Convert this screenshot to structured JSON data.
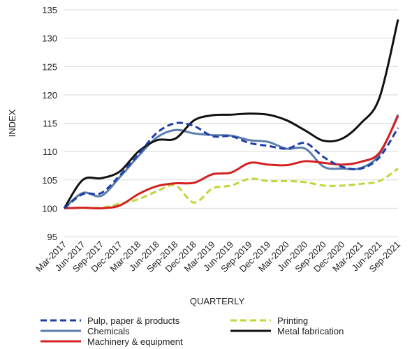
{
  "chart_data": {
    "type": "line",
    "xlabel": "QUARTERLY",
    "ylabel": "INDEX",
    "ylim": [
      95,
      135
    ],
    "yticks": [
      95,
      100,
      105,
      110,
      115,
      120,
      125,
      130,
      135
    ],
    "grid": "horizontal",
    "legend_position": "bottom",
    "categories": [
      "Mar-2017",
      "Jun-2017",
      "Sep-2017",
      "Dec-2017",
      "Mar-2018",
      "Jun-2018",
      "Sep-2018",
      "Dec-2018",
      "Mar-2019",
      "Jun-2019",
      "Sep-2019",
      "Dec-2019",
      "Mar-2020",
      "Jun-2020",
      "Sep-2020",
      "Dec-2020",
      "Mar-2021",
      "Jun-2021",
      "Sep-2021"
    ],
    "series": [
      {
        "name": "Pulp, paper & products",
        "color": "#1f3fa8",
        "dash": "dashed",
        "values": [
          100.0,
          102.5,
          102.7,
          105.8,
          109.5,
          113.3,
          115.0,
          114.5,
          112.7,
          112.7,
          111.5,
          111.0,
          110.5,
          111.5,
          109.0,
          107.3,
          107.0,
          109.0,
          114.2
        ]
      },
      {
        "name": "Printing",
        "color": "#bfd73a",
        "dash": "dashed",
        "values": [
          100.0,
          100.1,
          100.1,
          100.8,
          101.6,
          103.0,
          104.0,
          101.0,
          103.5,
          104.0,
          105.2,
          104.8,
          104.8,
          104.6,
          104.0,
          104.0,
          104.3,
          104.8,
          107.0
        ]
      },
      {
        "name": "Chemicals",
        "color": "#5b7fa8",
        "dash": "solid",
        "values": [
          100.0,
          102.7,
          102.2,
          105.5,
          109.2,
          112.5,
          113.8,
          113.2,
          112.9,
          112.8,
          112.0,
          111.7,
          110.5,
          110.5,
          107.3,
          107.0,
          107.1,
          109.5,
          116.5
        ]
      },
      {
        "name": "Metal fabrication",
        "color": "#111111",
        "dash": "solid",
        "values": [
          100.0,
          105.0,
          105.3,
          106.5,
          110.0,
          112.0,
          112.3,
          115.5,
          116.4,
          116.5,
          116.7,
          116.5,
          115.5,
          113.7,
          111.9,
          112.3,
          115.0,
          119.5,
          133.3
        ]
      },
      {
        "name": "Machinery & equipment",
        "color": "#d42020",
        "dash": "solid",
        "values": [
          100.0,
          100.1,
          100.0,
          100.5,
          102.5,
          103.9,
          104.4,
          104.5,
          106.0,
          106.3,
          108.0,
          107.7,
          107.6,
          108.3,
          108.0,
          107.7,
          108.2,
          109.8,
          116.3
        ]
      }
    ]
  }
}
